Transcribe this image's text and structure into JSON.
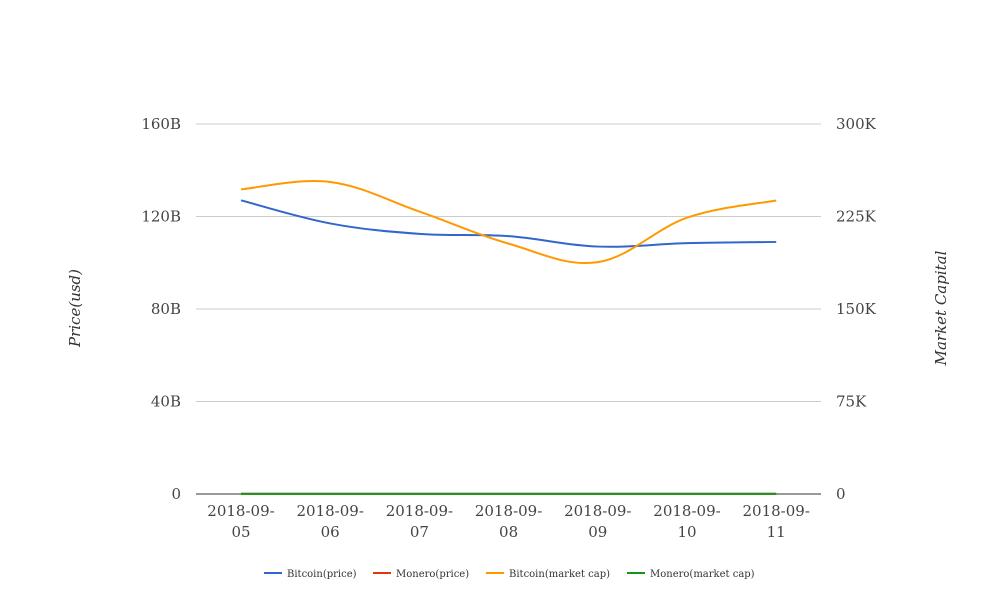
{
  "chart_data": {
    "type": "line",
    "x": [
      "2018-09-05",
      "2018-09-06",
      "2018-09-07",
      "2018-09-08",
      "2018-09-09",
      "2018-09-10",
      "2018-09-11"
    ],
    "x_tick_labels": [
      [
        "2018-09-",
        "05"
      ],
      [
        "2018-09-",
        "06"
      ],
      [
        "2018-09-",
        "07"
      ],
      [
        "2018-09-",
        "08"
      ],
      [
        "2018-09-",
        "09"
      ],
      [
        "2018-09-",
        "10"
      ],
      [
        "2018-09-",
        "11"
      ]
    ],
    "left_axis": {
      "label": "Price(usd)",
      "ylim": [
        0,
        160000000000
      ],
      "ticks": [
        0,
        40000000000,
        80000000000,
        120000000000,
        160000000000
      ],
      "tick_labels": [
        "0",
        "40B",
        "80B",
        "120B",
        "160B"
      ]
    },
    "right_axis": {
      "label": "Market Capital",
      "ylim": [
        0,
        300000
      ],
      "ticks": [
        0,
        75000,
        150000,
        225000,
        300000
      ],
      "tick_labels": [
        "0",
        "75K",
        "150K",
        "225K",
        "300K"
      ]
    },
    "series": [
      {
        "name": "Bitcoin(price)",
        "axis": "left",
        "color": "#3366cc",
        "values": [
          127000000000,
          117000000000,
          112500000000,
          111500000000,
          107000000000,
          108500000000,
          109000000000
        ]
      },
      {
        "name": "Monero(price)",
        "axis": "left",
        "color": "#dc3912",
        "values": [
          110000000,
          115000000,
          108000000,
          105000000,
          100000000,
          103000000,
          104000000
        ]
      },
      {
        "name": "Bitcoin(market cap)",
        "axis": "right",
        "color": "#ff9900",
        "values": [
          247000,
          253000,
          229000,
          203000,
          188000,
          224000,
          238000
        ]
      },
      {
        "name": "Monero(market cap)",
        "axis": "right",
        "color": "#109618",
        "values": [
          110,
          115,
          108,
          105,
          100,
          103,
          104
        ]
      }
    ],
    "grid": true,
    "legend_position": "bottom"
  }
}
